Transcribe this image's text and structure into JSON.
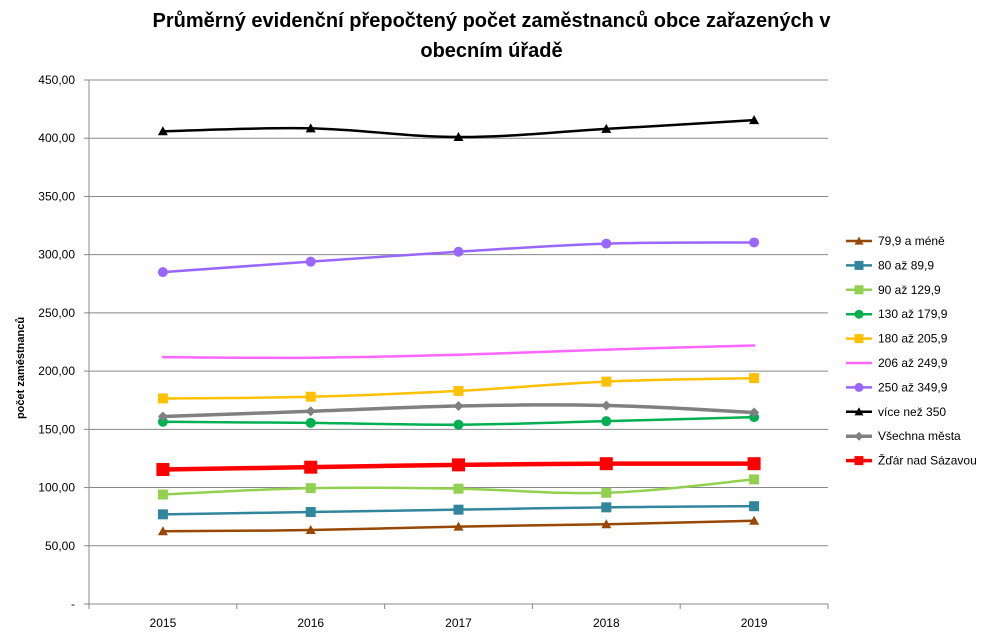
{
  "chart_data": {
    "type": "line",
    "title_line1": "Průměrný evidenční přepočtený počet zaměstnanců obce zařazených v",
    "title_line2": "obecním úřadě",
    "xlabel": "",
    "ylabel": "počet zaměstnanců",
    "categories": [
      "2015",
      "2016",
      "2017",
      "2018",
      "2019"
    ],
    "ylim": [
      0,
      450
    ],
    "y_ticks": [
      {
        "value": 0,
        "label": "-"
      },
      {
        "value": 50,
        "label": "50,00"
      },
      {
        "value": 100,
        "label": "100,00"
      },
      {
        "value": 150,
        "label": "150,00"
      },
      {
        "value": 200,
        "label": "200,00"
      },
      {
        "value": 250,
        "label": "250,00"
      },
      {
        "value": 300,
        "label": "300,00"
      },
      {
        "value": 350,
        "label": "350,00"
      },
      {
        "value": 400,
        "label": "400,00"
      },
      {
        "value": 450,
        "label": "450,00"
      }
    ],
    "grid": true,
    "legend_position": "right",
    "series": [
      {
        "name": "79,9 a méně",
        "color": "#974706",
        "marker": "triangle",
        "width": 2.5,
        "values": [
          62.5,
          63.5,
          66.5,
          68.5,
          71.5
        ]
      },
      {
        "name": "80 až 89,9",
        "color": "#31859C",
        "marker": "square",
        "width": 2.5,
        "values": [
          77,
          79,
          81,
          83,
          84
        ]
      },
      {
        "name": "90 až 129,9",
        "color": "#92D050",
        "marker": "square",
        "width": 2.5,
        "values": [
          94,
          99.5,
          99,
          95.5,
          107
        ]
      },
      {
        "name": "130 až 179,9",
        "color": "#00B050",
        "marker": "circle",
        "width": 2.5,
        "values": [
          156.5,
          155.5,
          154,
          157,
          160.5
        ]
      },
      {
        "name": "180 až 205,9",
        "color": "#FFC000",
        "marker": "square",
        "width": 2.5,
        "values": [
          176.5,
          178,
          183,
          191,
          194
        ]
      },
      {
        "name": "206 až 249,9",
        "color": "#FF66FF",
        "marker": "none",
        "width": 2.5,
        "values": [
          212,
          211.5,
          214,
          218.5,
          222
        ]
      },
      {
        "name": "250 až 349,9",
        "color": "#9966FF",
        "marker": "circle",
        "width": 2.5,
        "values": [
          285,
          294,
          302.5,
          309.5,
          310.5
        ]
      },
      {
        "name": "více než 350",
        "color": "#000000",
        "marker": "triangle",
        "width": 2.5,
        "values": [
          406,
          408.5,
          401,
          408,
          415.5
        ]
      },
      {
        "name": "Všechna města",
        "color": "#808080",
        "marker": "diamond",
        "width": 3.5,
        "values": [
          161,
          165.5,
          170,
          170.5,
          164.5
        ]
      },
      {
        "name": "Žďár nad Sázavou",
        "color": "#FF0000",
        "marker": "square",
        "width": 4.5,
        "values": [
          115.5,
          117.5,
          119.5,
          120.5,
          120.5
        ]
      }
    ]
  }
}
